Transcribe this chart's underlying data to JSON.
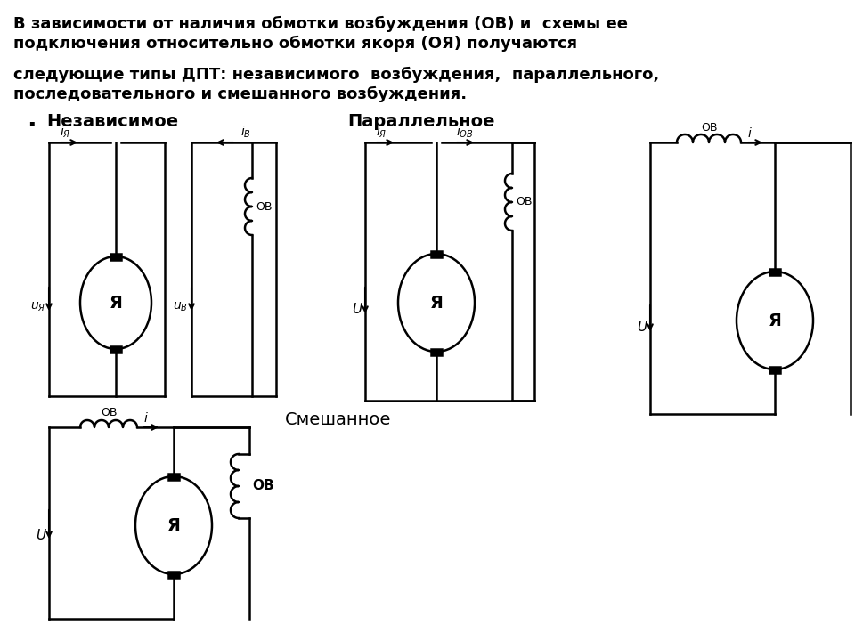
{
  "title_text1": "В зависимости от наличия обмотки возбуждения (ОВ) и  схемы ее",
  "title_text2": "подключения относительно обмотки якоря (ОЯ) получаются",
  "title_text3": "следующие типы ДПТ: независимого  возбуждения,  параллельного,",
  "title_text4": "последовательного и смешанного возбуждения.",
  "label_nezavisimoe": "Независимое",
  "label_parallelnoe": "Параллельное",
  "label_smeshannoe": "Смешанное",
  "bg_color": "#ffffff",
  "line_color": "#000000"
}
